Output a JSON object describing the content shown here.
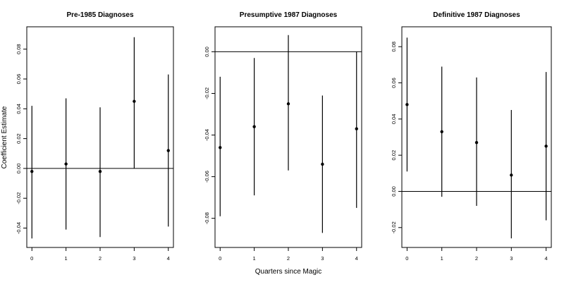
{
  "figure": {
    "ylabel": "Coefficient Estimate",
    "xlabel": "Quarters since Magic"
  },
  "chart_data": [
    {
      "type": "scatter",
      "title": "Pre-1985 Diagnoses",
      "x": [
        0,
        1,
        2,
        3,
        4
      ],
      "estimate": [
        -0.002,
        0.003,
        -0.002,
        0.045,
        0.012
      ],
      "ci_low": [
        -0.047,
        -0.041,
        -0.046,
        0.0,
        -0.039
      ],
      "ci_high": [
        0.042,
        0.047,
        0.041,
        0.088,
        0.063
      ],
      "xlim": [
        -0.15,
        4.15
      ],
      "ylim": [
        -0.053,
        0.095
      ],
      "xticks": [
        0,
        1,
        2,
        3,
        4
      ],
      "yticks": [
        -0.04,
        -0.02,
        0.0,
        0.02,
        0.04,
        0.06,
        0.08
      ],
      "ytick_labels": [
        "-0.04",
        "-0.02",
        "0.00",
        "0.02",
        "0.04",
        "0.06",
        "0.08"
      ],
      "reference_line": 0,
      "grid": false
    },
    {
      "type": "scatter",
      "title": "Presumptive 1987 Diagnoses",
      "x": [
        0,
        1,
        2,
        3,
        4
      ],
      "estimate": [
        -0.046,
        -0.036,
        -0.025,
        -0.054,
        -0.037
      ],
      "ci_low": [
        -0.079,
        -0.069,
        -0.057,
        -0.087,
        -0.075
      ],
      "ci_high": [
        -0.012,
        -0.003,
        0.008,
        -0.021,
        0.0
      ],
      "xlim": [
        -0.15,
        4.15
      ],
      "ylim": [
        -0.094,
        0.012
      ],
      "xticks": [
        0,
        1,
        2,
        3,
        4
      ],
      "yticks": [
        -0.08,
        -0.06,
        -0.04,
        -0.02,
        0.0
      ],
      "ytick_labels": [
        "-0.08",
        "-0.06",
        "-0.04",
        "-0.02",
        "0.00"
      ],
      "reference_line": 0,
      "grid": false
    },
    {
      "type": "scatter",
      "title": "Definitive 1987 Diagnoses",
      "x": [
        0,
        1,
        2,
        3,
        4
      ],
      "estimate": [
        0.048,
        0.033,
        0.027,
        0.009,
        0.025
      ],
      "ci_low": [
        0.011,
        -0.003,
        -0.008,
        -0.026,
        -0.016
      ],
      "ci_high": [
        0.085,
        0.069,
        0.063,
        0.045,
        0.066
      ],
      "xlim": [
        -0.15,
        4.15
      ],
      "ylim": [
        -0.031,
        0.091
      ],
      "xticks": [
        0,
        1,
        2,
        3,
        4
      ],
      "yticks": [
        -0.02,
        0.0,
        0.02,
        0.04,
        0.06,
        0.08
      ],
      "ytick_labels": [
        "-0.02",
        "0.00",
        "0.02",
        "0.04",
        "0.06",
        "0.08"
      ],
      "reference_line": 0,
      "grid": false
    }
  ]
}
